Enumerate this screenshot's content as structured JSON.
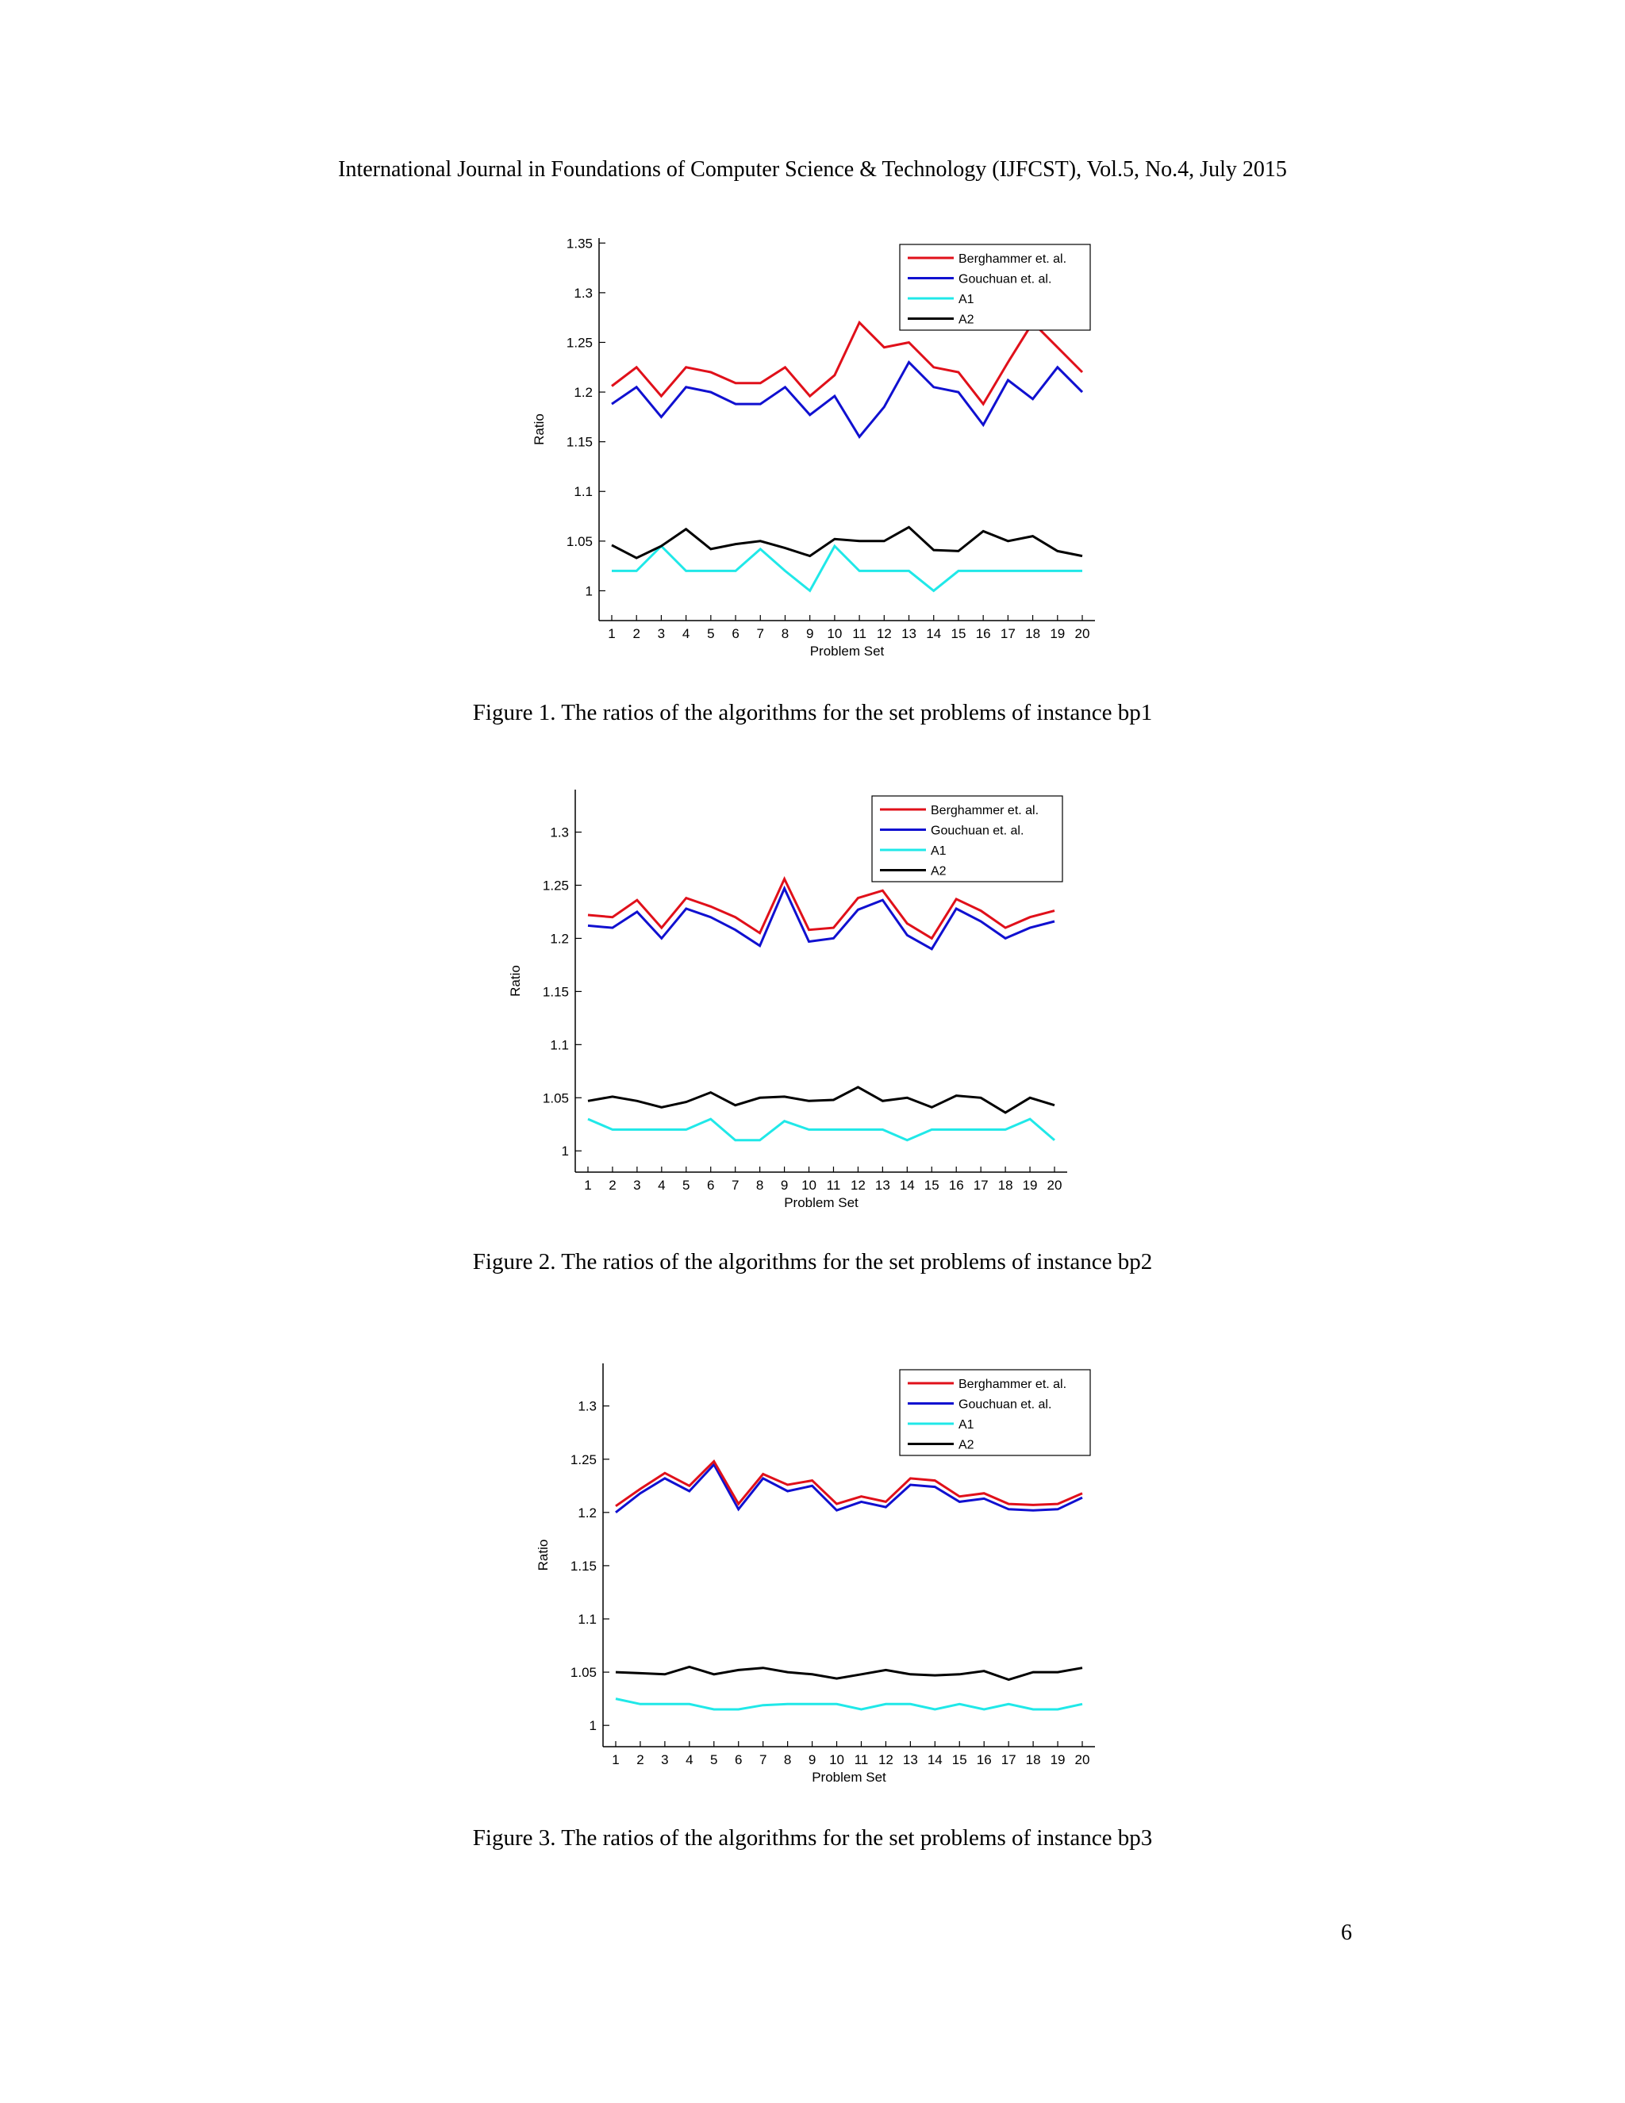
{
  "header": {
    "journal": "International Journal in Foundations of Computer Science & Technology (IJFCST), Vol.5, No.4, July 2015"
  },
  "page_number": "6",
  "captions": [
    "Figure 1.  The ratios of the algorithms for the set problems of instance bp1",
    "Figure 2.  The ratios of the algorithms for the set problems of instance bp2",
    "Figure 3.  The ratios of the algorithms for the set problems of instance bp3"
  ],
  "chart_data": [
    {
      "type": "line",
      "xlabel": "Problem Set",
      "ylabel": "Ratio",
      "x": [
        1,
        2,
        3,
        4,
        5,
        6,
        7,
        8,
        9,
        10,
        11,
        12,
        13,
        14,
        15,
        16,
        17,
        18,
        19,
        20
      ],
      "ylim": [
        0.97,
        1.355
      ],
      "yticks": [
        "1",
        "1.05",
        "1.1",
        "1.15",
        "1.2",
        "1.25",
        "1.3",
        "1.35"
      ],
      "legend_position": "top-right",
      "series": [
        {
          "name": "Berghammer et. al.",
          "color": "#e0101a",
          "values": [
            1.206,
            1.225,
            1.196,
            1.225,
            1.22,
            1.209,
            1.209,
            1.225,
            1.196,
            1.217,
            1.27,
            1.245,
            1.25,
            1.225,
            1.22,
            1.188,
            1.23,
            1.27,
            1.245,
            1.22
          ]
        },
        {
          "name": "Gouchuan et. al.",
          "color": "#1010d0",
          "values": [
            1.188,
            1.205,
            1.175,
            1.205,
            1.2,
            1.188,
            1.188,
            1.205,
            1.177,
            1.196,
            1.155,
            1.185,
            1.23,
            1.205,
            1.2,
            1.167,
            1.212,
            1.193,
            1.225,
            1.2
          ]
        },
        {
          "name": "A1",
          "color": "#20e8e8",
          "values": [
            1.02,
            1.02,
            1.045,
            1.02,
            1.02,
            1.02,
            1.042,
            1.02,
            1.0,
            1.045,
            1.02,
            1.02,
            1.02,
            1.0,
            1.02,
            1.02,
            1.02,
            1.02,
            1.02,
            1.02
          ]
        },
        {
          "name": "A2",
          "color": "#000000",
          "values": [
            1.046,
            1.033,
            1.045,
            1.062,
            1.042,
            1.047,
            1.05,
            1.043,
            1.035,
            1.052,
            1.05,
            1.05,
            1.064,
            1.041,
            1.04,
            1.06,
            1.05,
            1.055,
            1.04,
            1.035
          ]
        }
      ]
    },
    {
      "type": "line",
      "xlabel": "Problem Set",
      "ylabel": "Ratio",
      "x": [
        1,
        2,
        3,
        4,
        5,
        6,
        7,
        8,
        9,
        10,
        11,
        12,
        13,
        14,
        15,
        16,
        17,
        18,
        19,
        20
      ],
      "ylim": [
        0.98,
        1.34
      ],
      "yticks": [
        "1",
        "1.05",
        "1.1",
        "1.15",
        "1.2",
        "1.25",
        "1.3"
      ],
      "legend_position": "top-right",
      "series": [
        {
          "name": "Berghammer et. al.",
          "color": "#e0101a",
          "values": [
            1.222,
            1.22,
            1.236,
            1.21,
            1.238,
            1.23,
            1.22,
            1.205,
            1.256,
            1.208,
            1.21,
            1.238,
            1.245,
            1.214,
            1.2,
            1.237,
            1.226,
            1.21,
            1.22,
            1.226
          ]
        },
        {
          "name": "Gouchuan et. al.",
          "color": "#1010d0",
          "values": [
            1.212,
            1.21,
            1.225,
            1.2,
            1.228,
            1.22,
            1.208,
            1.193,
            1.247,
            1.197,
            1.2,
            1.227,
            1.236,
            1.203,
            1.19,
            1.228,
            1.216,
            1.2,
            1.21,
            1.216
          ]
        },
        {
          "name": "A1",
          "color": "#20e8e8",
          "values": [
            1.03,
            1.02,
            1.02,
            1.02,
            1.02,
            1.03,
            1.01,
            1.01,
            1.028,
            1.02,
            1.02,
            1.02,
            1.02,
            1.01,
            1.02,
            1.02,
            1.02,
            1.02,
            1.03,
            1.01
          ]
        },
        {
          "name": "A2",
          "color": "#000000",
          "values": [
            1.047,
            1.051,
            1.047,
            1.041,
            1.046,
            1.055,
            1.043,
            1.05,
            1.051,
            1.047,
            1.048,
            1.06,
            1.047,
            1.05,
            1.041,
            1.052,
            1.05,
            1.036,
            1.05,
            1.043
          ]
        }
      ]
    },
    {
      "type": "line",
      "xlabel": "Problem Set",
      "ylabel": "Ratio",
      "x": [
        1,
        2,
        3,
        4,
        5,
        6,
        7,
        8,
        9,
        10,
        11,
        12,
        13,
        14,
        15,
        16,
        17,
        18,
        19,
        20
      ],
      "ylim": [
        0.98,
        1.34
      ],
      "yticks": [
        "1",
        "1.05",
        "1.1",
        "1.15",
        "1.2",
        "1.25",
        "1.3"
      ],
      "legend_position": "top-right",
      "series": [
        {
          "name": "Berghammer et. al.",
          "color": "#e0101a",
          "values": [
            1.206,
            1.222,
            1.237,
            1.225,
            1.248,
            1.208,
            1.236,
            1.226,
            1.23,
            1.208,
            1.215,
            1.21,
            1.232,
            1.23,
            1.215,
            1.218,
            1.208,
            1.207,
            1.208,
            1.218
          ]
        },
        {
          "name": "Gouchuan et. al.",
          "color": "#1010d0",
          "values": [
            1.2,
            1.218,
            1.232,
            1.22,
            1.245,
            1.203,
            1.232,
            1.22,
            1.225,
            1.202,
            1.21,
            1.205,
            1.226,
            1.224,
            1.21,
            1.213,
            1.203,
            1.202,
            1.203,
            1.214
          ]
        },
        {
          "name": "A1",
          "color": "#20e8e8",
          "values": [
            1.025,
            1.02,
            1.02,
            1.02,
            1.015,
            1.015,
            1.019,
            1.02,
            1.02,
            1.02,
            1.015,
            1.02,
            1.02,
            1.015,
            1.02,
            1.015,
            1.02,
            1.015,
            1.015,
            1.02
          ]
        },
        {
          "name": "A2",
          "color": "#000000",
          "values": [
            1.05,
            1.049,
            1.048,
            1.055,
            1.048,
            1.052,
            1.054,
            1.05,
            1.048,
            1.044,
            1.048,
            1.052,
            1.048,
            1.047,
            1.048,
            1.051,
            1.043,
            1.05,
            1.05,
            1.054
          ]
        }
      ]
    }
  ]
}
